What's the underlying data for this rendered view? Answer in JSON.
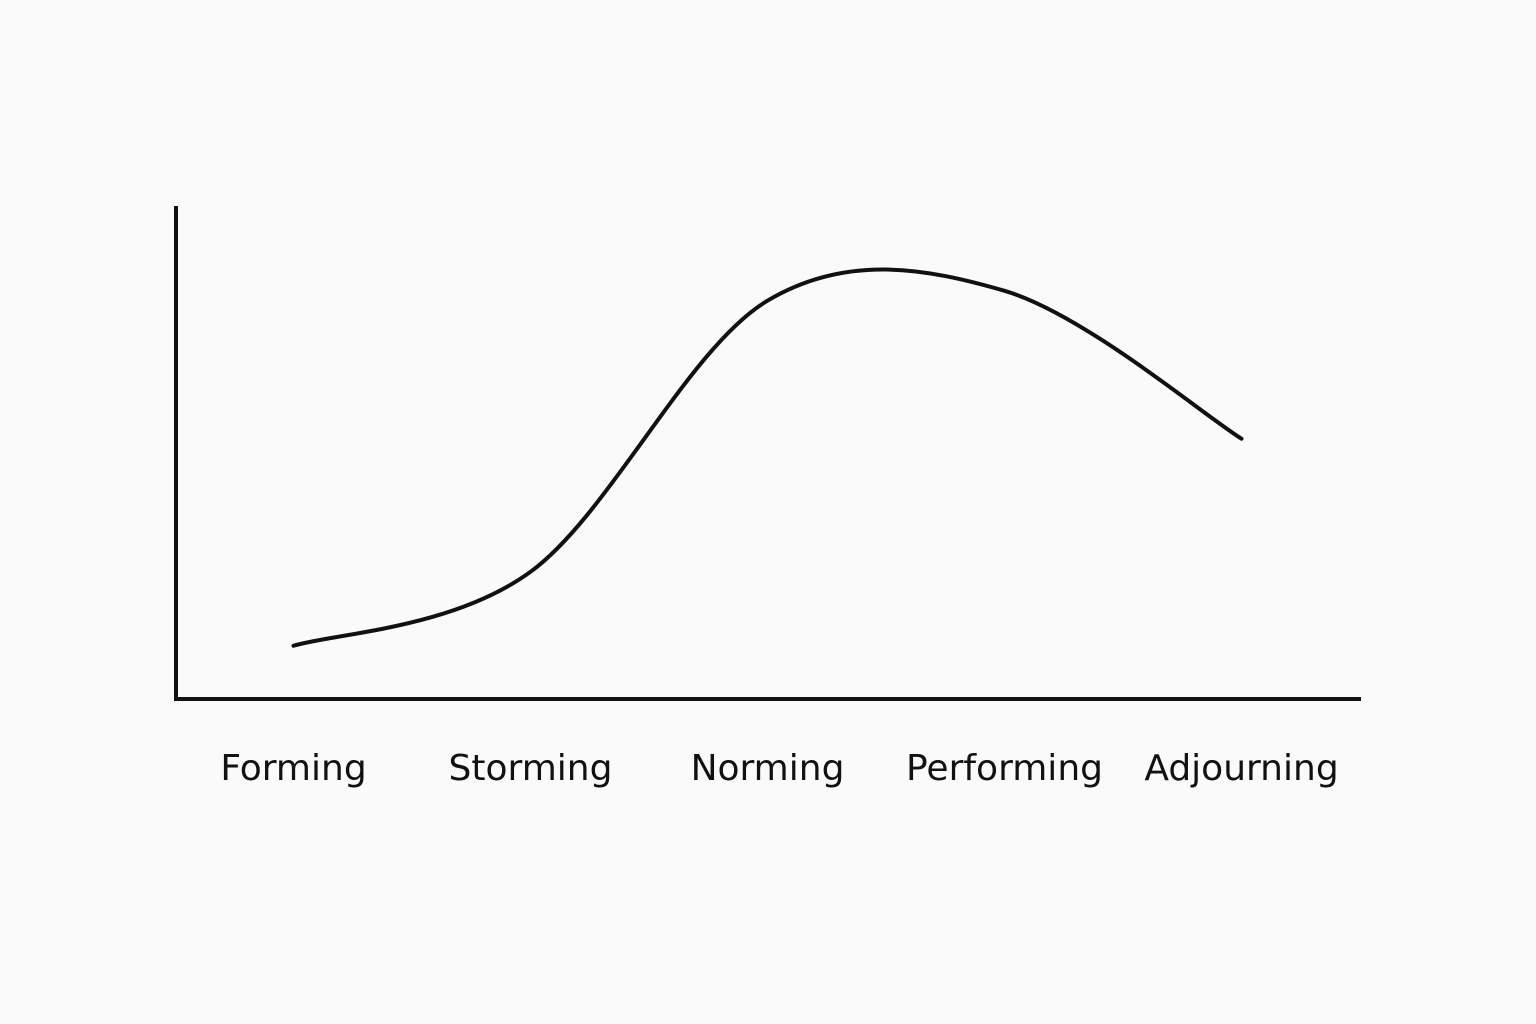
{
  "chart_data": {
    "type": "line",
    "categories": [
      "Forming",
      "Storming",
      "Norming",
      "Performing",
      "Adjourning"
    ],
    "values": [
      11,
      26,
      81,
      83,
      53
    ],
    "color": "#111111",
    "ylim": [
      0,
      100
    ],
    "grid": false
  }
}
